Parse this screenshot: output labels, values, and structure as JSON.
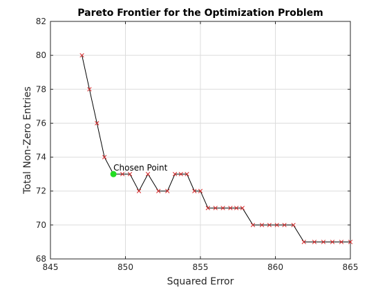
{
  "chart_data": {
    "type": "line",
    "title": "Pareto Frontier for the Optimization Problem",
    "xlabel": "Squared Error",
    "ylabel": "Total Non-Zero Entries",
    "xlim": [
      845,
      865
    ],
    "ylim": [
      68,
      82
    ],
    "xticks": [
      845,
      850,
      855,
      860,
      865
    ],
    "yticks": [
      68,
      70,
      72,
      74,
      76,
      78,
      80,
      82
    ],
    "grid": true,
    "line_color": "#000000",
    "marker_color": "#d62728",
    "marker": "x",
    "series": [
      {
        "x": [
          847.1,
          847.6,
          848.1,
          848.6,
          849.2,
          849.8,
          850.3,
          850.9,
          851.5,
          852.2,
          852.8,
          853.3,
          853.7,
          854.1,
          854.6,
          855.0,
          855.5,
          856.0,
          856.5,
          857.0,
          857.4,
          857.8,
          858.5,
          859.1,
          859.6,
          860.1,
          860.6,
          861.2,
          861.9,
          862.6,
          863.2,
          863.8,
          864.4,
          865.0
        ],
        "y": [
          80,
          78,
          76,
          74,
          73,
          73,
          73,
          72,
          73,
          72,
          72,
          73,
          73,
          73,
          72,
          72,
          71,
          71,
          71,
          71,
          71,
          71,
          70,
          70,
          70,
          70,
          70,
          70,
          69,
          69,
          69,
          69,
          69,
          69
        ]
      }
    ],
    "highlight": {
      "label": "Chosen Point",
      "x": 849.2,
      "y": 73,
      "color": "#22dd22"
    }
  }
}
